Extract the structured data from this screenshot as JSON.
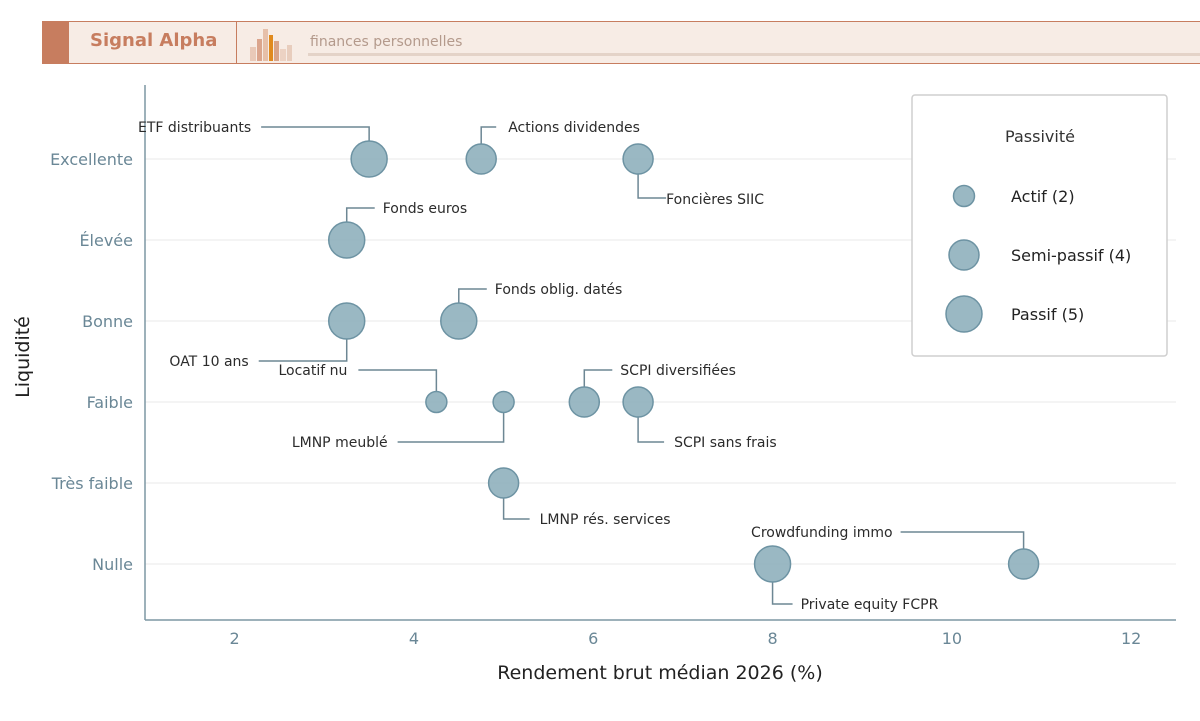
{
  "header": {
    "brand": "Signal Alpha",
    "tagline": "finances personnelles",
    "logo_icon": "bar-skyline-logo-icon",
    "colors": {
      "accent": "#c77d5f",
      "background": "#f7ece5",
      "logo_highlight": "#e08a1e"
    }
  },
  "chart_data": {
    "type": "scatter",
    "subtype": "bubble",
    "xlabel": "Rendement brut médian 2026 (%)",
    "ylabel": "Liquidité",
    "xlim": [
      1,
      12.5
    ],
    "x_ticks": [
      2,
      4,
      6,
      8,
      10,
      12
    ],
    "y_categories": [
      "Nulle",
      "Très faible",
      "Faible",
      "Bonne",
      "Élevée",
      "Excellente"
    ],
    "grid": "horizontal",
    "marker_color": "#8fb0bd",
    "marker_edge_color": "#6d93a3",
    "legend": {
      "title": "Passivité",
      "position": "top-right",
      "entries": [
        {
          "label": "Actif (2)",
          "size": 2
        },
        {
          "label": "Semi-passif (4)",
          "size": 4
        },
        {
          "label": "Passif (5)",
          "size": 5
        }
      ]
    },
    "points": [
      {
        "label": "ETF distribuants",
        "x": 3.5,
        "y": "Excellente",
        "passivite": 5
      },
      {
        "label": "Actions dividendes",
        "x": 4.75,
        "y": "Excellente",
        "passivite": 4
      },
      {
        "label": "Foncières SIIC",
        "x": 6.5,
        "y": "Excellente",
        "passivite": 4
      },
      {
        "label": "Fonds euros",
        "x": 3.25,
        "y": "Élevée",
        "passivite": 5
      },
      {
        "label": "OAT 10 ans",
        "x": 3.25,
        "y": "Bonne",
        "passivite": 5
      },
      {
        "label": "Fonds oblig. datés",
        "x": 4.5,
        "y": "Bonne",
        "passivite": 5
      },
      {
        "label": "Locatif nu",
        "x": 4.25,
        "y": "Faible",
        "passivite": 2
      },
      {
        "label": "LMNP meublé",
        "x": 5.0,
        "y": "Faible",
        "passivite": 2
      },
      {
        "label": "SCPI diversifiées",
        "x": 5.9,
        "y": "Faible",
        "passivite": 4
      },
      {
        "label": "SCPI sans frais",
        "x": 6.5,
        "y": "Faible",
        "passivite": 4
      },
      {
        "label": "LMNP rés. services",
        "x": 5.0,
        "y": "Très faible",
        "passivite": 4
      },
      {
        "label": "Private equity FCPR",
        "x": 8.0,
        "y": "Nulle",
        "passivite": 5
      },
      {
        "label": "Crowdfunding immo",
        "x": 10.8,
        "y": "Nulle",
        "passivite": 4
      }
    ]
  }
}
